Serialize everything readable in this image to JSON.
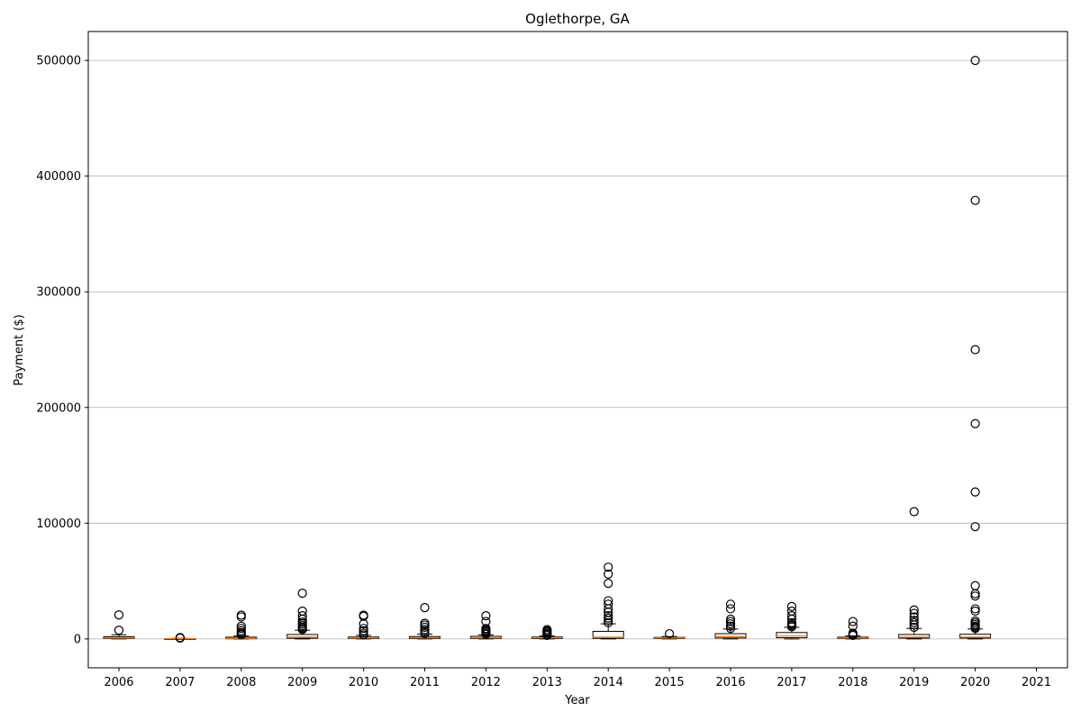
{
  "chart_data": {
    "type": "box",
    "title": "Oglethorpe, GA",
    "xlabel": "Year",
    "ylabel": "Payment ($)",
    "ylim": [
      -25000,
      525000
    ],
    "yticks": [
      0,
      100000,
      200000,
      300000,
      400000,
      500000
    ],
    "ytick_labels": [
      "0",
      "100000",
      "200000",
      "300000",
      "400000",
      "500000"
    ],
    "grid": "horizontal",
    "categories": [
      "2006",
      "2007",
      "2008",
      "2009",
      "2010",
      "2011",
      "2012",
      "2013",
      "2014",
      "2015",
      "2016",
      "2017",
      "2018",
      "2019",
      "2020",
      "2021"
    ],
    "boxes": [
      {
        "year": "2006",
        "whisker_low": 0,
        "q1": 300,
        "median": 800,
        "q3": 1800,
        "whisker_high": 3500,
        "outliers": [
          7500,
          20700
        ]
      },
      {
        "year": "2007",
        "whisker_low": 0,
        "q1": 50,
        "median": 150,
        "q3": 300,
        "whisker_high": 500,
        "outliers": [
          700,
          1200
        ]
      },
      {
        "year": "2008",
        "whisker_low": 0,
        "q1": 150,
        "median": 500,
        "q3": 1500,
        "whisker_high": 2500,
        "outliers": [
          3500,
          4500,
          5500,
          7000,
          9000,
          11000,
          19000,
          20500
        ]
      },
      {
        "year": "2009",
        "whisker_low": 0,
        "q1": 600,
        "median": 1500,
        "q3": 3800,
        "whisker_high": 7500,
        "outliers": [
          8000,
          9000,
          10000,
          11500,
          13000,
          14500,
          17000,
          20000,
          24000,
          39500
        ]
      },
      {
        "year": "2010",
        "whisker_low": 0,
        "q1": 300,
        "median": 800,
        "q3": 1600,
        "whisker_high": 3000,
        "outliers": [
          3500,
          5000,
          7000,
          9000,
          13000,
          19500,
          20500
        ]
      },
      {
        "year": "2011",
        "whisker_low": 0,
        "q1": 300,
        "median": 900,
        "q3": 2000,
        "whisker_high": 4000,
        "outliers": [
          4500,
          6000,
          8000,
          10000,
          12000,
          13500,
          27000
        ]
      },
      {
        "year": "2012",
        "whisker_low": 0,
        "q1": 300,
        "median": 900,
        "q3": 2200,
        "whisker_high": 3500,
        "outliers": [
          4000,
          5000,
          6000,
          7000,
          8000,
          9000,
          15000,
          20000
        ]
      },
      {
        "year": "2013",
        "whisker_low": 0,
        "q1": 300,
        "median": 900,
        "q3": 1600,
        "whisker_high": 2500,
        "outliers": [
          3000,
          4000,
          5000,
          6000,
          7000,
          8000
        ]
      },
      {
        "year": "2014",
        "whisker_low": 0,
        "q1": 500,
        "median": 1500,
        "q3": 6500,
        "whisker_high": 13000,
        "outliers": [
          14000,
          16000,
          18000,
          20000,
          23000,
          26000,
          30000,
          33000,
          48000,
          56000,
          62000
        ]
      },
      {
        "year": "2015",
        "whisker_low": 0,
        "q1": 300,
        "median": 800,
        "q3": 1300,
        "whisker_high": 2000,
        "outliers": [
          4500
        ]
      },
      {
        "year": "2016",
        "whisker_low": 0,
        "q1": 800,
        "median": 2000,
        "q3": 4500,
        "whisker_high": 8500,
        "outliers": [
          9000,
          11000,
          13000,
          15000,
          17000,
          26000,
          30000
        ]
      },
      {
        "year": "2017",
        "whisker_low": 0,
        "q1": 1000,
        "median": 2500,
        "q3": 5500,
        "whisker_high": 10000,
        "outliers": [
          10500,
          11500,
          12500,
          14000,
          17000,
          20000,
          24000,
          28000
        ]
      },
      {
        "year": "2018",
        "whisker_low": 0,
        "q1": 300,
        "median": 800,
        "q3": 1500,
        "whisker_high": 2500,
        "outliers": [
          3000,
          4000,
          5000,
          11000,
          15000
        ]
      },
      {
        "year": "2019",
        "whisker_low": 0,
        "q1": 700,
        "median": 1500,
        "q3": 3800,
        "whisker_high": 9000,
        "outliers": [
          10000,
          12000,
          14000,
          16000,
          19000,
          22000,
          25000,
          110000
        ]
      },
      {
        "year": "2020",
        "whisker_low": 0,
        "q1": 700,
        "median": 1500,
        "q3": 4000,
        "whisker_high": 8500,
        "outliers": [
          9000,
          10000,
          11000,
          12500,
          14000,
          15500,
          24000,
          26000,
          37000,
          39000,
          46000,
          97000,
          127000,
          186000,
          250000,
          379000,
          500000
        ]
      },
      {
        "year": "2021",
        "whisker_low": null,
        "q1": null,
        "median": null,
        "q3": null,
        "whisker_high": null,
        "outliers": []
      }
    ]
  }
}
